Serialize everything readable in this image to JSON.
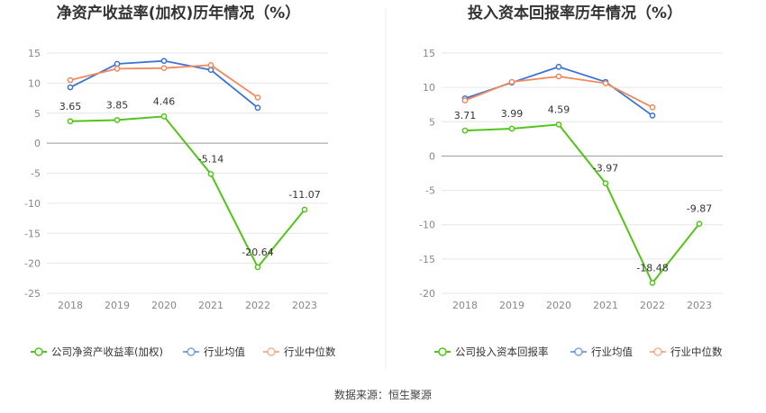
{
  "source_text": "数据来源：恒生聚源",
  "chart_data": [
    {
      "type": "line",
      "title": "净资产收益率(加权)历年情况（%）",
      "categories": [
        "2018",
        "2019",
        "2020",
        "2021",
        "2022",
        "2023"
      ],
      "ylim": [
        -25,
        15
      ],
      "yticks": [
        15,
        10,
        5,
        0,
        -5,
        -10,
        -15,
        -20,
        -25
      ],
      "grid": true,
      "legend_position": "bottom",
      "series": [
        {
          "name": "公司净资产收益率(加权)",
          "color": "#52c41a",
          "values": [
            3.65,
            3.85,
            4.46,
            -5.14,
            -20.64,
            -11.07
          ],
          "labels": [
            "3.65",
            "3.85",
            "4.46",
            "-5.14",
            "-20.64",
            "-11.07"
          ]
        },
        {
          "name": "行业均值",
          "color": "#3b73d9",
          "values": [
            9.3,
            13.2,
            13.7,
            12.2,
            5.9,
            null
          ]
        },
        {
          "name": "行业中位数",
          "color": "#f08a5d",
          "values": [
            10.5,
            12.4,
            12.5,
            13.0,
            7.6,
            null
          ]
        }
      ]
    },
    {
      "type": "line",
      "title": "投入资本回报率历年情况（%）",
      "categories": [
        "2018",
        "2019",
        "2020",
        "2021",
        "2022",
        "2023"
      ],
      "ylim": [
        -20,
        15
      ],
      "yticks": [
        15,
        10,
        5,
        0,
        -5,
        -10,
        -15,
        -20
      ],
      "grid": true,
      "legend_position": "bottom",
      "series": [
        {
          "name": "公司投入资本回报率",
          "color": "#52c41a",
          "values": [
            3.71,
            3.99,
            4.59,
            -3.97,
            -18.48,
            -9.87
          ],
          "labels": [
            "3.71",
            "3.99",
            "4.59",
            "-3.97",
            "-18.48",
            "-9.87"
          ]
        },
        {
          "name": "行业均值",
          "color": "#3b73d9",
          "values": [
            8.4,
            10.7,
            13.0,
            10.8,
            5.9,
            null
          ]
        },
        {
          "name": "行业中位数",
          "color": "#f08a5d",
          "values": [
            8.1,
            10.8,
            11.6,
            10.6,
            7.1,
            null
          ]
        }
      ]
    }
  ]
}
